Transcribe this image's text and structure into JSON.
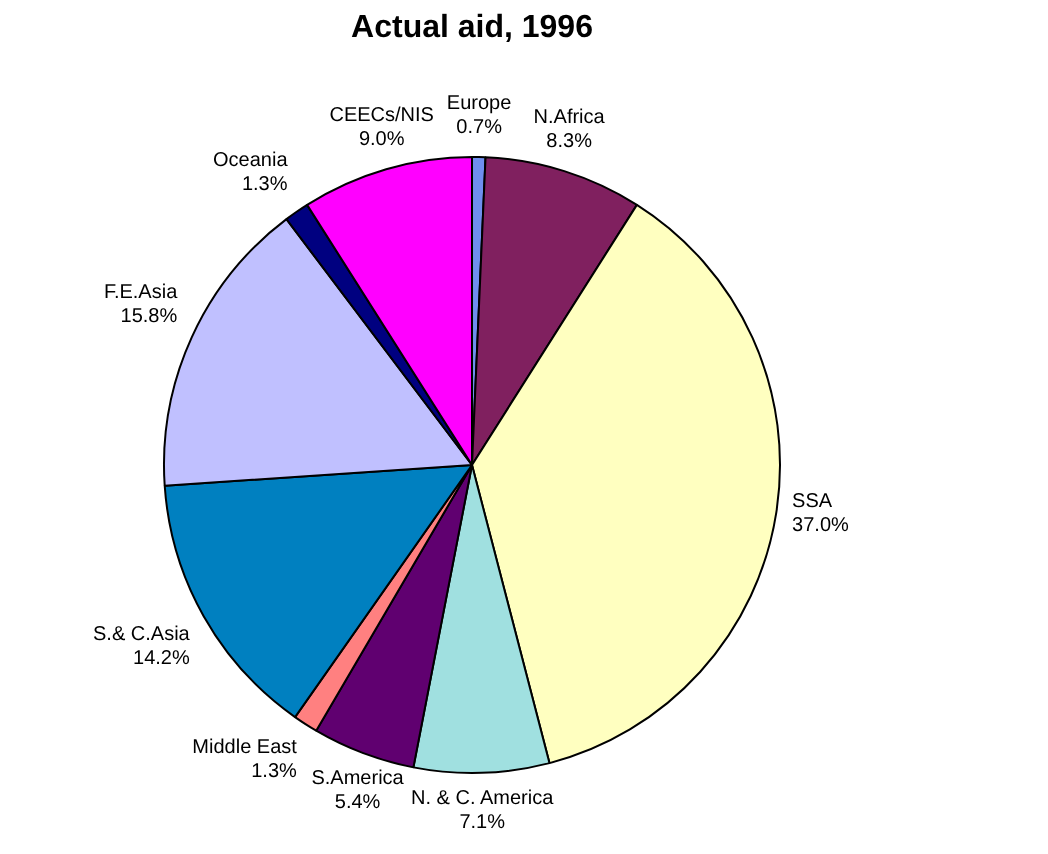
{
  "chart_data": {
    "type": "pie",
    "title": "Actual aid, 1996",
    "categories": [
      "Europe",
      "N.Africa",
      "SSA",
      "N. & C. America",
      "S.America",
      "Middle East",
      "S.& C.Asia",
      "F.E.Asia",
      "Oceania",
      "CEECs/NIS"
    ],
    "values": [
      0.7,
      8.3,
      37.0,
      7.1,
      5.4,
      1.3,
      14.2,
      15.8,
      1.3,
      9.0
    ],
    "value_labels": [
      "0.7%",
      "8.3%",
      "37.0%",
      "7.1%",
      "5.4%",
      "1.3%",
      "14.2%",
      "15.8%",
      "1.3%",
      "9.0%"
    ],
    "colors": [
      "#6f8fef",
      "#80205f",
      "#ffffc0",
      "#a0e0e0",
      "#600070",
      "#ff8080",
      "#0080c0",
      "#c0c0ff",
      "#000080",
      "#ff00ff"
    ],
    "legend": false
  }
}
